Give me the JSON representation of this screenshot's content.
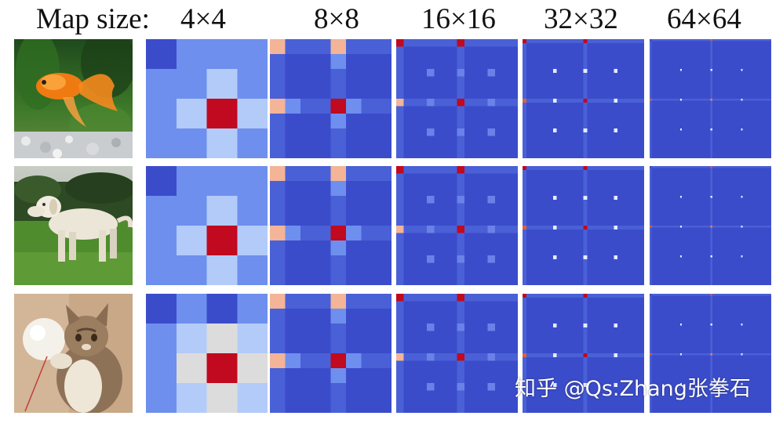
{
  "header": {
    "prefix": "Map size:",
    "sizes": [
      "4×4",
      "8×8",
      "16×16",
      "32×32",
      "64×64"
    ]
  },
  "rows": [
    {
      "subject": "goldfish"
    },
    {
      "subject": "dog"
    },
    {
      "subject": "cat"
    }
  ],
  "heatmap_colors": {
    "background": "#3b4ccb",
    "light_blue": "#6e8fee",
    "pale_blue": "#b3cbf8",
    "neutral": "#dcdcdc",
    "peach": "#f3b497",
    "hot": "#c1091f"
  },
  "watermark": "知乎 @Qs.Zhang张拳石"
}
